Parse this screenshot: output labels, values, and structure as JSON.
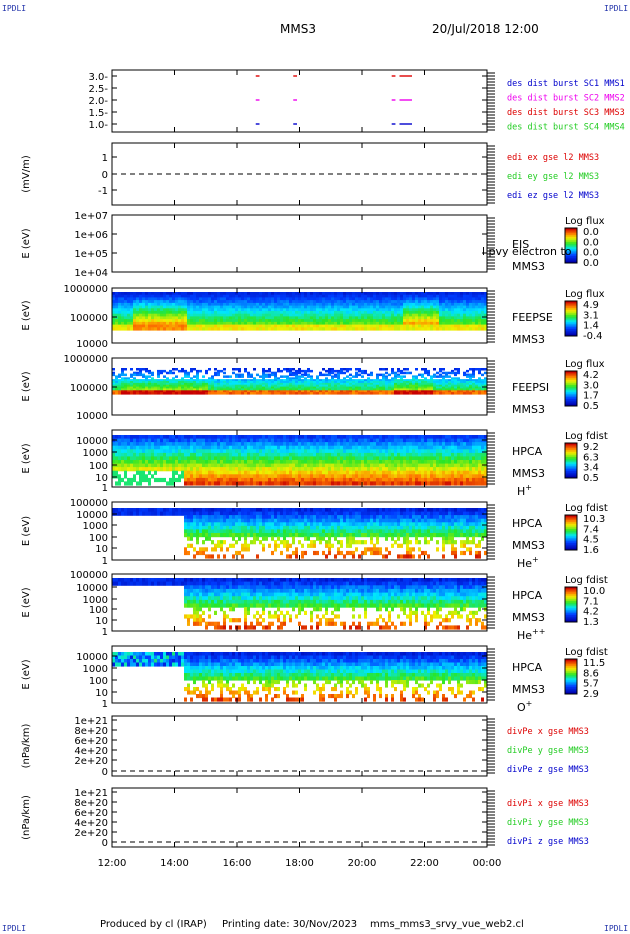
{
  "header": {
    "corner_label": "IPDLI",
    "spacecraft": "MMS3",
    "datetime": "20/Jul/2018 12:00"
  },
  "footer": {
    "produced": "Produced by cl (IRAP)",
    "printing": "Printing date: 30/Nov/2023",
    "file": "mms_mms3_srvy_vue_web2.cl"
  },
  "colors": {
    "red": "#dd0000",
    "green": "#22cc22",
    "blue": "#0000cc",
    "magenta": "#ee00ee"
  },
  "chart_data": {
    "type": "multi-panel time series",
    "x_ticks": [
      "12:00",
      "14:00",
      "16:00",
      "18:00",
      "20:00",
      "22:00",
      "00:00"
    ],
    "xlim_hours": [
      12,
      24
    ],
    "panels": [
      {
        "id": "burst",
        "type": "scatter",
        "ticks": [
          "3.0-",
          "2.5-",
          "2.0-",
          "1.5-",
          "1.0-"
        ],
        "legend": [
          {
            "label": "des dist burst SC1 MMS1",
            "color": "#0000cc"
          },
          {
            "label": "des dist burst SC2 MMS2",
            "color": "#ee00ee"
          },
          {
            "label": "des dist burst SC3 MMS3",
            "color": "#dd0000"
          },
          {
            "label": "des dist burst SC4 MMS4",
            "color": "#22cc22"
          }
        ],
        "segments": [
          {
            "level": 3,
            "start": 16.6,
            "end": 16.72
          },
          {
            "level": 3,
            "start": 17.8,
            "end": 17.92
          },
          {
            "level": 3,
            "start": 20.95,
            "end": 21.07
          },
          {
            "level": 3,
            "start": 21.2,
            "end": 21.6
          },
          {
            "level": 2,
            "start": 16.6,
            "end": 16.72
          },
          {
            "level": 2,
            "start": 17.8,
            "end": 17.92
          },
          {
            "level": 2,
            "start": 20.95,
            "end": 21.07
          },
          {
            "level": 2,
            "start": 21.2,
            "end": 21.6
          },
          {
            "level": 1,
            "start": 16.6,
            "end": 16.72
          },
          {
            "level": 1,
            "start": 17.8,
            "end": 17.92
          },
          {
            "level": 1,
            "start": 20.95,
            "end": 21.07
          },
          {
            "level": 1,
            "start": 21.2,
            "end": 21.6
          }
        ]
      },
      {
        "id": "edi",
        "type": "line",
        "ylabel": "(mV/m)",
        "ticks": [
          "1",
          "0",
          "-1"
        ],
        "legend": [
          {
            "label": "edi ex gse l2 MMS3",
            "color": "#dd0000"
          },
          {
            "label": "edi ey gse l2 MMS3",
            "color": "#22cc22"
          },
          {
            "label": "edi ez gse l2 MMS3",
            "color": "#0000cc"
          }
        ]
      },
      {
        "id": "eis",
        "type": "heatmap",
        "ylabel": "E (eV)",
        "ticks": [
          "1e+07",
          "1e+06",
          "1e+05",
          "1e+04"
        ],
        "right_labels": [
          "EIS",
          "MMS3"
        ],
        "overlap_text": "l pvy electron to",
        "cbar_title": "Log flux",
        "cbar_ticks": [
          "0.0",
          "0.0",
          "0.0",
          "0.0"
        ]
      },
      {
        "id": "feepse",
        "type": "heatmap",
        "ylabel": "E (eV)",
        "ticks": [
          "1000000",
          "100000",
          "10000"
        ],
        "right_labels": [
          "FEEPSE",
          "MMS3"
        ],
        "cbar_title": "Log flux",
        "cbar_ticks": [
          "4.9",
          "3.1",
          "1.4",
          "-0.4"
        ]
      },
      {
        "id": "feepsi",
        "type": "heatmap",
        "ylabel": "E (eV)",
        "ticks": [
          "1000000",
          "100000",
          "10000"
        ],
        "right_labels": [
          "FEEPSI",
          "MMS3"
        ],
        "cbar_title": "Log flux",
        "cbar_ticks": [
          "4.2",
          "3.0",
          "1.7",
          "0.5"
        ]
      },
      {
        "id": "hpca_h",
        "type": "heatmap",
        "ylabel": "E (eV)",
        "ticks": [
          "10000",
          "1000",
          "100",
          "10",
          "1"
        ],
        "right_labels": [
          "HPCA",
          "MMS3"
        ],
        "species": "H",
        "species_sup": "+",
        "cbar_title": "Log fdist",
        "cbar_ticks": [
          "9.2",
          "6.3",
          "3.4",
          "0.5"
        ]
      },
      {
        "id": "hpca_he",
        "type": "heatmap",
        "ylabel": "E (eV)",
        "ticks": [
          "100000",
          "10000",
          "1000",
          "100",
          "10",
          "1"
        ],
        "right_labels": [
          "HPCA",
          "MMS3"
        ],
        "species": "He",
        "species_sup": "+",
        "cbar_title": "Log fdist",
        "cbar_ticks": [
          "10.3",
          "7.4",
          "4.5",
          "1.6"
        ]
      },
      {
        "id": "hpca_he2",
        "type": "heatmap",
        "ylabel": "E (eV)",
        "ticks": [
          "100000",
          "10000",
          "1000",
          "100",
          "10",
          "1"
        ],
        "right_labels": [
          "HPCA",
          "MMS3"
        ],
        "species": "He",
        "species_sup": "++",
        "cbar_title": "Log fdist",
        "cbar_ticks": [
          "10.0",
          "7.1",
          "4.2",
          "1.3"
        ]
      },
      {
        "id": "hpca_o",
        "type": "heatmap",
        "ylabel": "E (eV)",
        "ticks": [
          "10000",
          "1000",
          "100",
          "10",
          "1"
        ],
        "right_labels": [
          "HPCA",
          "MMS3"
        ],
        "species": "O",
        "species_sup": "+",
        "cbar_title": "Log fdist",
        "cbar_ticks": [
          "11.5",
          "8.6",
          "5.7",
          "2.9"
        ]
      },
      {
        "id": "divpe",
        "type": "line",
        "ylabel": "(nPa/km)",
        "ticks": [
          "1e+21",
          "8e+20",
          "6e+20",
          "4e+20",
          "2e+20",
          "0"
        ],
        "legend": [
          {
            "label": "divPe x gse MMS3",
            "color": "#dd0000"
          },
          {
            "label": "divPe y gse MMS3",
            "color": "#22cc22"
          },
          {
            "label": "divPe z gse MMS3",
            "color": "#0000cc"
          }
        ]
      },
      {
        "id": "divpi",
        "type": "line",
        "ylabel": "(nPa/km)",
        "ticks": [
          "1e+21",
          "8e+20",
          "6e+20",
          "4e+20",
          "2e+20",
          "0"
        ],
        "legend": [
          {
            "label": "divPi x gse MMS3",
            "color": "#dd0000"
          },
          {
            "label": "divPi y gse MMS3",
            "color": "#22cc22"
          },
          {
            "label": "divPi z gse MMS3",
            "color": "#0000cc"
          }
        ]
      }
    ]
  }
}
